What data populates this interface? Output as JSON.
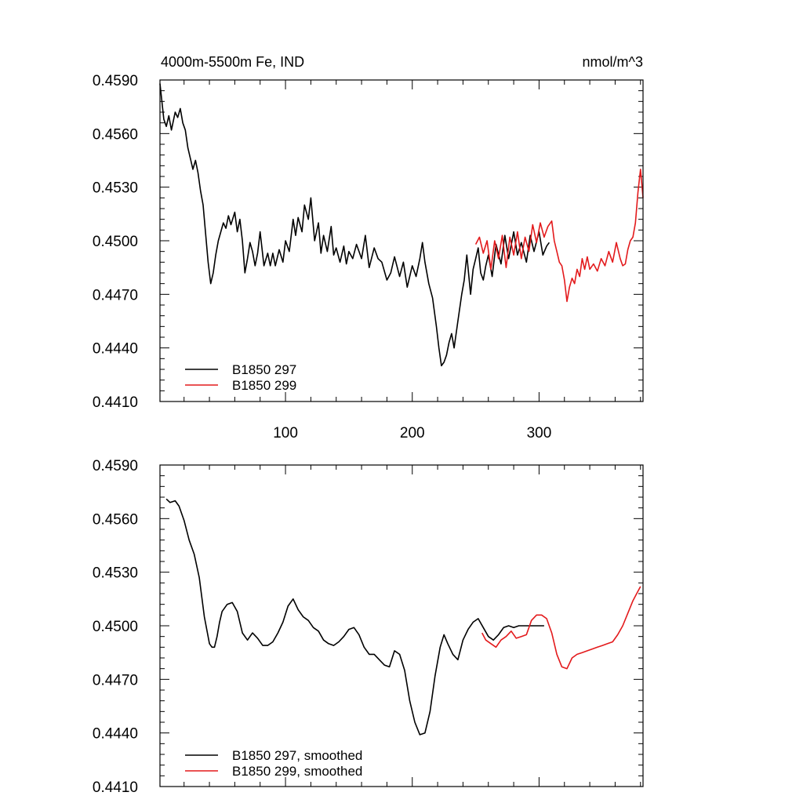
{
  "figure": {
    "title_left": "4000m-5500m Fe, IND",
    "title_right": "nmol/m^3"
  },
  "chart_data": [
    {
      "type": "line",
      "panel": "top",
      "title": "4000m-5500m Fe, IND",
      "units": "nmol/m^3",
      "xlim": [
        1,
        382
      ],
      "ylim": [
        0.441,
        0.459
      ],
      "x_ticks": [
        100,
        200,
        300
      ],
      "y_ticks": [
        "0.4590",
        "0.4560",
        "0.4530",
        "0.4500",
        "0.4470",
        "0.4440",
        "0.4410"
      ],
      "grid": false,
      "legend_position": "bottom-left",
      "series": [
        {
          "name": "B1850 297",
          "color": "#000000",
          "x": [
            1,
            4,
            6,
            8,
            10,
            13,
            15,
            17,
            19,
            21,
            23,
            25,
            27,
            29,
            31,
            33,
            35,
            37,
            39,
            41,
            43,
            45,
            47,
            49,
            51,
            53,
            55,
            57,
            60,
            62,
            64,
            66,
            68,
            70,
            72,
            74,
            76,
            78,
            80,
            83,
            86,
            88,
            90,
            92,
            95,
            98,
            100,
            103,
            106,
            108,
            110,
            113,
            115,
            118,
            120,
            123,
            126,
            128,
            130,
            133,
            136,
            138,
            140,
            143,
            146,
            148,
            150,
            153,
            156,
            160,
            163,
            166,
            170,
            173,
            176,
            180,
            183,
            186,
            190,
            193,
            196,
            200,
            203,
            206,
            208,
            210,
            213,
            216,
            219,
            221,
            223,
            225,
            227,
            229,
            231,
            233,
            236,
            239,
            241,
            243,
            246,
            248,
            250,
            252,
            254,
            256,
            258,
            260,
            263,
            266,
            270,
            273,
            276,
            280,
            283,
            286,
            290,
            293,
            296,
            300,
            303,
            306,
            308
          ],
          "y": [
            0.4588,
            0.4568,
            0.4564,
            0.457,
            0.4562,
            0.4572,
            0.4569,
            0.4574,
            0.4566,
            0.4562,
            0.4552,
            0.4546,
            0.454,
            0.4545,
            0.4538,
            0.4528,
            0.452,
            0.4504,
            0.4488,
            0.4476,
            0.4482,
            0.4492,
            0.45,
            0.4505,
            0.451,
            0.4507,
            0.4514,
            0.4509,
            0.4516,
            0.4505,
            0.4512,
            0.45,
            0.4482,
            0.449,
            0.4499,
            0.4494,
            0.4486,
            0.4493,
            0.4505,
            0.4486,
            0.4493,
            0.4486,
            0.4493,
            0.4486,
            0.4495,
            0.4488,
            0.45,
            0.4494,
            0.4512,
            0.4503,
            0.4513,
            0.4505,
            0.452,
            0.4512,
            0.4524,
            0.45,
            0.451,
            0.4493,
            0.4503,
            0.4494,
            0.4508,
            0.4492,
            0.4496,
            0.4488,
            0.4497,
            0.4487,
            0.4494,
            0.449,
            0.4498,
            0.449,
            0.4503,
            0.4485,
            0.4496,
            0.449,
            0.4488,
            0.4478,
            0.4482,
            0.4491,
            0.448,
            0.4488,
            0.4474,
            0.4486,
            0.448,
            0.449,
            0.4499,
            0.4488,
            0.4476,
            0.4468,
            0.4452,
            0.444,
            0.443,
            0.4432,
            0.4436,
            0.4443,
            0.4448,
            0.444,
            0.4455,
            0.447,
            0.4478,
            0.4492,
            0.447,
            0.4484,
            0.449,
            0.4496,
            0.4482,
            0.4478,
            0.4486,
            0.4492,
            0.448,
            0.4498,
            0.4487,
            0.4503,
            0.449,
            0.4505,
            0.4492,
            0.4499,
            0.4488,
            0.4503,
            0.4494,
            0.4505,
            0.4492,
            0.4497,
            0.4499
          ]
        },
        {
          "name": "B1850 299",
          "color": "#e31a1c",
          "x": [
            250,
            253,
            256,
            259,
            262,
            265,
            268,
            271,
            274,
            277,
            280,
            283,
            286,
            289,
            292,
            295,
            298,
            301,
            304,
            307,
            310,
            312,
            314,
            316,
            318,
            320,
            322,
            324,
            326,
            328,
            330,
            332,
            334,
            336,
            338,
            340,
            343,
            346,
            349,
            352,
            355,
            358,
            361,
            364,
            366,
            368,
            370,
            372,
            374,
            376,
            378,
            380,
            382
          ],
          "y": [
            0.4498,
            0.4502,
            0.4493,
            0.45,
            0.4484,
            0.45,
            0.449,
            0.4503,
            0.4485,
            0.4502,
            0.4492,
            0.4505,
            0.449,
            0.4502,
            0.4494,
            0.4509,
            0.4499,
            0.451,
            0.4502,
            0.4508,
            0.4511,
            0.45,
            0.4494,
            0.4488,
            0.4486,
            0.4478,
            0.4466,
            0.4474,
            0.4479,
            0.4476,
            0.4484,
            0.448,
            0.449,
            0.4484,
            0.4491,
            0.4484,
            0.4487,
            0.4483,
            0.449,
            0.4486,
            0.4494,
            0.4488,
            0.4499,
            0.449,
            0.4486,
            0.4487,
            0.4495,
            0.45,
            0.4502,
            0.451,
            0.4527,
            0.454,
            0.4524
          ]
        }
      ]
    },
    {
      "type": "line",
      "panel": "bottom",
      "xlim": [
        1,
        382
      ],
      "ylim": [
        0.441,
        0.459
      ],
      "y_ticks": [
        "0.4590",
        "0.4560",
        "0.4530",
        "0.4500",
        "0.4470",
        "0.4440",
        "0.4410"
      ],
      "grid": false,
      "legend_position": "bottom-left",
      "series": [
        {
          "name": "B1850 297, smoothed",
          "color": "#000000",
          "x": [
            6,
            9,
            13,
            16,
            20,
            24,
            28,
            32,
            36,
            40,
            42,
            44,
            46,
            48,
            50,
            54,
            58,
            62,
            66,
            70,
            74,
            78,
            82,
            86,
            90,
            94,
            98,
            102,
            106,
            110,
            114,
            118,
            122,
            126,
            130,
            134,
            138,
            142,
            146,
            150,
            154,
            158,
            162,
            166,
            170,
            174,
            178,
            182,
            186,
            190,
            194,
            198,
            202,
            206,
            210,
            214,
            218,
            222,
            225,
            228,
            232,
            236,
            240,
            244,
            248,
            252,
            256,
            260,
            264,
            268,
            272,
            276,
            280,
            284,
            288,
            292,
            296,
            300,
            304
          ],
          "y": [
            0.4571,
            0.4569,
            0.457,
            0.4567,
            0.4559,
            0.4548,
            0.454,
            0.4527,
            0.4505,
            0.449,
            0.4488,
            0.4488,
            0.4494,
            0.4502,
            0.4508,
            0.4512,
            0.4513,
            0.4508,
            0.4496,
            0.4492,
            0.4496,
            0.4493,
            0.4489,
            0.4489,
            0.4491,
            0.4496,
            0.4502,
            0.4511,
            0.4515,
            0.4509,
            0.4505,
            0.4503,
            0.4499,
            0.4497,
            0.4492,
            0.449,
            0.4489,
            0.4491,
            0.4494,
            0.4498,
            0.4499,
            0.4495,
            0.4488,
            0.4484,
            0.4484,
            0.4481,
            0.4478,
            0.4477,
            0.4486,
            0.4484,
            0.4475,
            0.4458,
            0.4446,
            0.4439,
            0.444,
            0.4452,
            0.4472,
            0.4488,
            0.4495,
            0.449,
            0.4484,
            0.4481,
            0.4492,
            0.4498,
            0.4502,
            0.4504,
            0.4499,
            0.4494,
            0.4492,
            0.4495,
            0.4499,
            0.45,
            0.4499,
            0.45,
            0.45,
            0.45,
            0.45,
            0.45,
            0.45
          ]
        },
        {
          "name": "B1850 299, smoothed",
          "color": "#e31a1c",
          "x": [
            255,
            258,
            262,
            266,
            270,
            274,
            278,
            282,
            286,
            290,
            294,
            298,
            302,
            306,
            310,
            314,
            318,
            322,
            326,
            330,
            334,
            338,
            342,
            346,
            350,
            354,
            358,
            362,
            366,
            370,
            374,
            377,
            380
          ],
          "y": [
            0.4496,
            0.4492,
            0.449,
            0.4488,
            0.4492,
            0.4494,
            0.4497,
            0.4493,
            0.4494,
            0.4495,
            0.4503,
            0.4506,
            0.4506,
            0.4504,
            0.4496,
            0.4484,
            0.4477,
            0.4476,
            0.4482,
            0.4484,
            0.4485,
            0.4486,
            0.4487,
            0.4488,
            0.4489,
            0.449,
            0.4491,
            0.4495,
            0.45,
            0.4507,
            0.4514,
            0.4518,
            0.4522
          ]
        }
      ]
    }
  ]
}
